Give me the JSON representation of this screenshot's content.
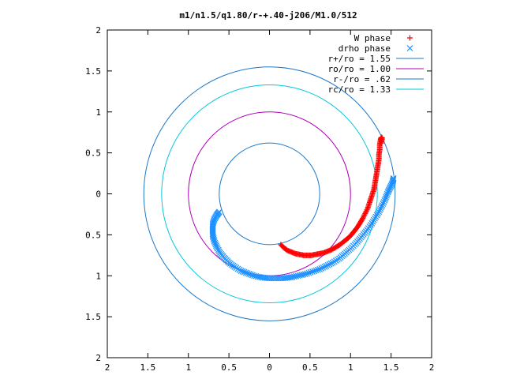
{
  "chart_data": {
    "type": "scatter",
    "title": "m1/n1.5/q1.80/r-+.40-j206/M1.0/512",
    "xlabel": "",
    "ylabel": "",
    "xlim": [
      -2,
      2
    ],
    "ylim": [
      -2,
      2
    ],
    "grid": false,
    "legend_position": "top-right",
    "x_tick_labels": [
      "2",
      "1.5",
      "1",
      "0.5",
      "0",
      "0.5",
      "1",
      "1.5",
      "2"
    ],
    "x_tick_values": [
      -2,
      -1.5,
      -1,
      -0.5,
      0,
      0.5,
      1,
      1.5,
      2
    ],
    "y_tick_labels": [
      "2",
      "1.5",
      "1",
      "0.5",
      "0",
      "0.5",
      "1",
      "1.5",
      "2"
    ],
    "y_tick_values": [
      2,
      1.5,
      1,
      0.5,
      0,
      -0.5,
      -1,
      -1.5,
      -2
    ],
    "circles": [
      {
        "name": "r+/ro = 1.55",
        "radius": 1.55,
        "color": "#1f78c8"
      },
      {
        "name": "ro/ro = 1.00",
        "radius": 1.0,
        "color": "#b000b8"
      },
      {
        "name": "r-/ro = .62",
        "radius": 0.62,
        "color": "#1f78c8"
      },
      {
        "name": "rc/ro = 1.33",
        "radius": 1.33,
        "color": "#00c8d8"
      }
    ],
    "series": [
      {
        "name": "W phase",
        "marker": "+",
        "color": "#ff0000",
        "points": [
          [
            0.14,
            -0.62
          ],
          [
            0.18,
            -0.66
          ],
          [
            0.22,
            -0.69
          ],
          [
            0.27,
            -0.71
          ],
          [
            0.32,
            -0.73
          ],
          [
            0.37,
            -0.74
          ],
          [
            0.42,
            -0.75
          ],
          [
            0.47,
            -0.75
          ],
          [
            0.52,
            -0.75
          ],
          [
            0.57,
            -0.74
          ],
          [
            0.62,
            -0.73
          ],
          [
            0.67,
            -0.72
          ],
          [
            0.72,
            -0.7
          ],
          [
            0.77,
            -0.68
          ],
          [
            0.82,
            -0.65
          ],
          [
            0.87,
            -0.62
          ],
          [
            0.92,
            -0.58
          ],
          [
            0.97,
            -0.54
          ],
          [
            1.01,
            -0.5
          ],
          [
            1.05,
            -0.45
          ],
          [
            1.09,
            -0.4
          ],
          [
            1.12,
            -0.35
          ],
          [
            1.15,
            -0.3
          ],
          [
            1.18,
            -0.24
          ],
          [
            1.21,
            -0.18
          ],
          [
            1.23,
            -0.12
          ],
          [
            1.25,
            -0.06
          ],
          [
            1.27,
            0.0
          ],
          [
            1.29,
            0.06
          ],
          [
            1.3,
            0.12
          ],
          [
            1.31,
            0.18
          ],
          [
            1.32,
            0.24
          ],
          [
            1.33,
            0.3
          ],
          [
            1.34,
            0.36
          ],
          [
            1.35,
            0.42
          ],
          [
            1.35,
            0.48
          ],
          [
            1.36,
            0.54
          ],
          [
            1.36,
            0.6
          ],
          [
            1.37,
            0.66
          ],
          [
            1.38,
            0.69
          ],
          [
            1.39,
            0.68
          ],
          [
            1.38,
            0.62
          ]
        ]
      },
      {
        "name": "drho phase",
        "marker": "x",
        "color": "#1e90ff",
        "points": [
          [
            -0.62,
            -0.22
          ],
          [
            -0.65,
            -0.26
          ],
          [
            -0.68,
            -0.31
          ],
          [
            -0.7,
            -0.37
          ],
          [
            -0.7,
            -0.44
          ],
          [
            -0.7,
            -0.51
          ],
          [
            -0.68,
            -0.58
          ],
          [
            -0.65,
            -0.65
          ],
          [
            -0.61,
            -0.72
          ],
          [
            -0.56,
            -0.78
          ],
          [
            -0.5,
            -0.84
          ],
          [
            -0.43,
            -0.89
          ],
          [
            -0.35,
            -0.94
          ],
          [
            -0.27,
            -0.97
          ],
          [
            -0.19,
            -1.0
          ],
          [
            -0.1,
            -1.02
          ],
          [
            -0.01,
            -1.03
          ],
          [
            0.08,
            -1.03
          ],
          [
            0.17,
            -1.03
          ],
          [
            0.26,
            -1.02
          ],
          [
            0.35,
            -1.0
          ],
          [
            0.44,
            -0.98
          ],
          [
            0.53,
            -0.95
          ],
          [
            0.62,
            -0.92
          ],
          [
            0.7,
            -0.88
          ],
          [
            0.78,
            -0.84
          ],
          [
            0.86,
            -0.79
          ],
          [
            0.93,
            -0.73
          ],
          [
            1.0,
            -0.67
          ],
          [
            1.07,
            -0.6
          ],
          [
            1.13,
            -0.53
          ],
          [
            1.19,
            -0.46
          ],
          [
            1.25,
            -0.38
          ],
          [
            1.3,
            -0.3
          ],
          [
            1.35,
            -0.22
          ],
          [
            1.39,
            -0.14
          ],
          [
            1.43,
            -0.06
          ],
          [
            1.46,
            0.02
          ],
          [
            1.49,
            0.08
          ],
          [
            1.52,
            0.14
          ],
          [
            1.53,
            0.19
          ]
        ]
      }
    ]
  }
}
